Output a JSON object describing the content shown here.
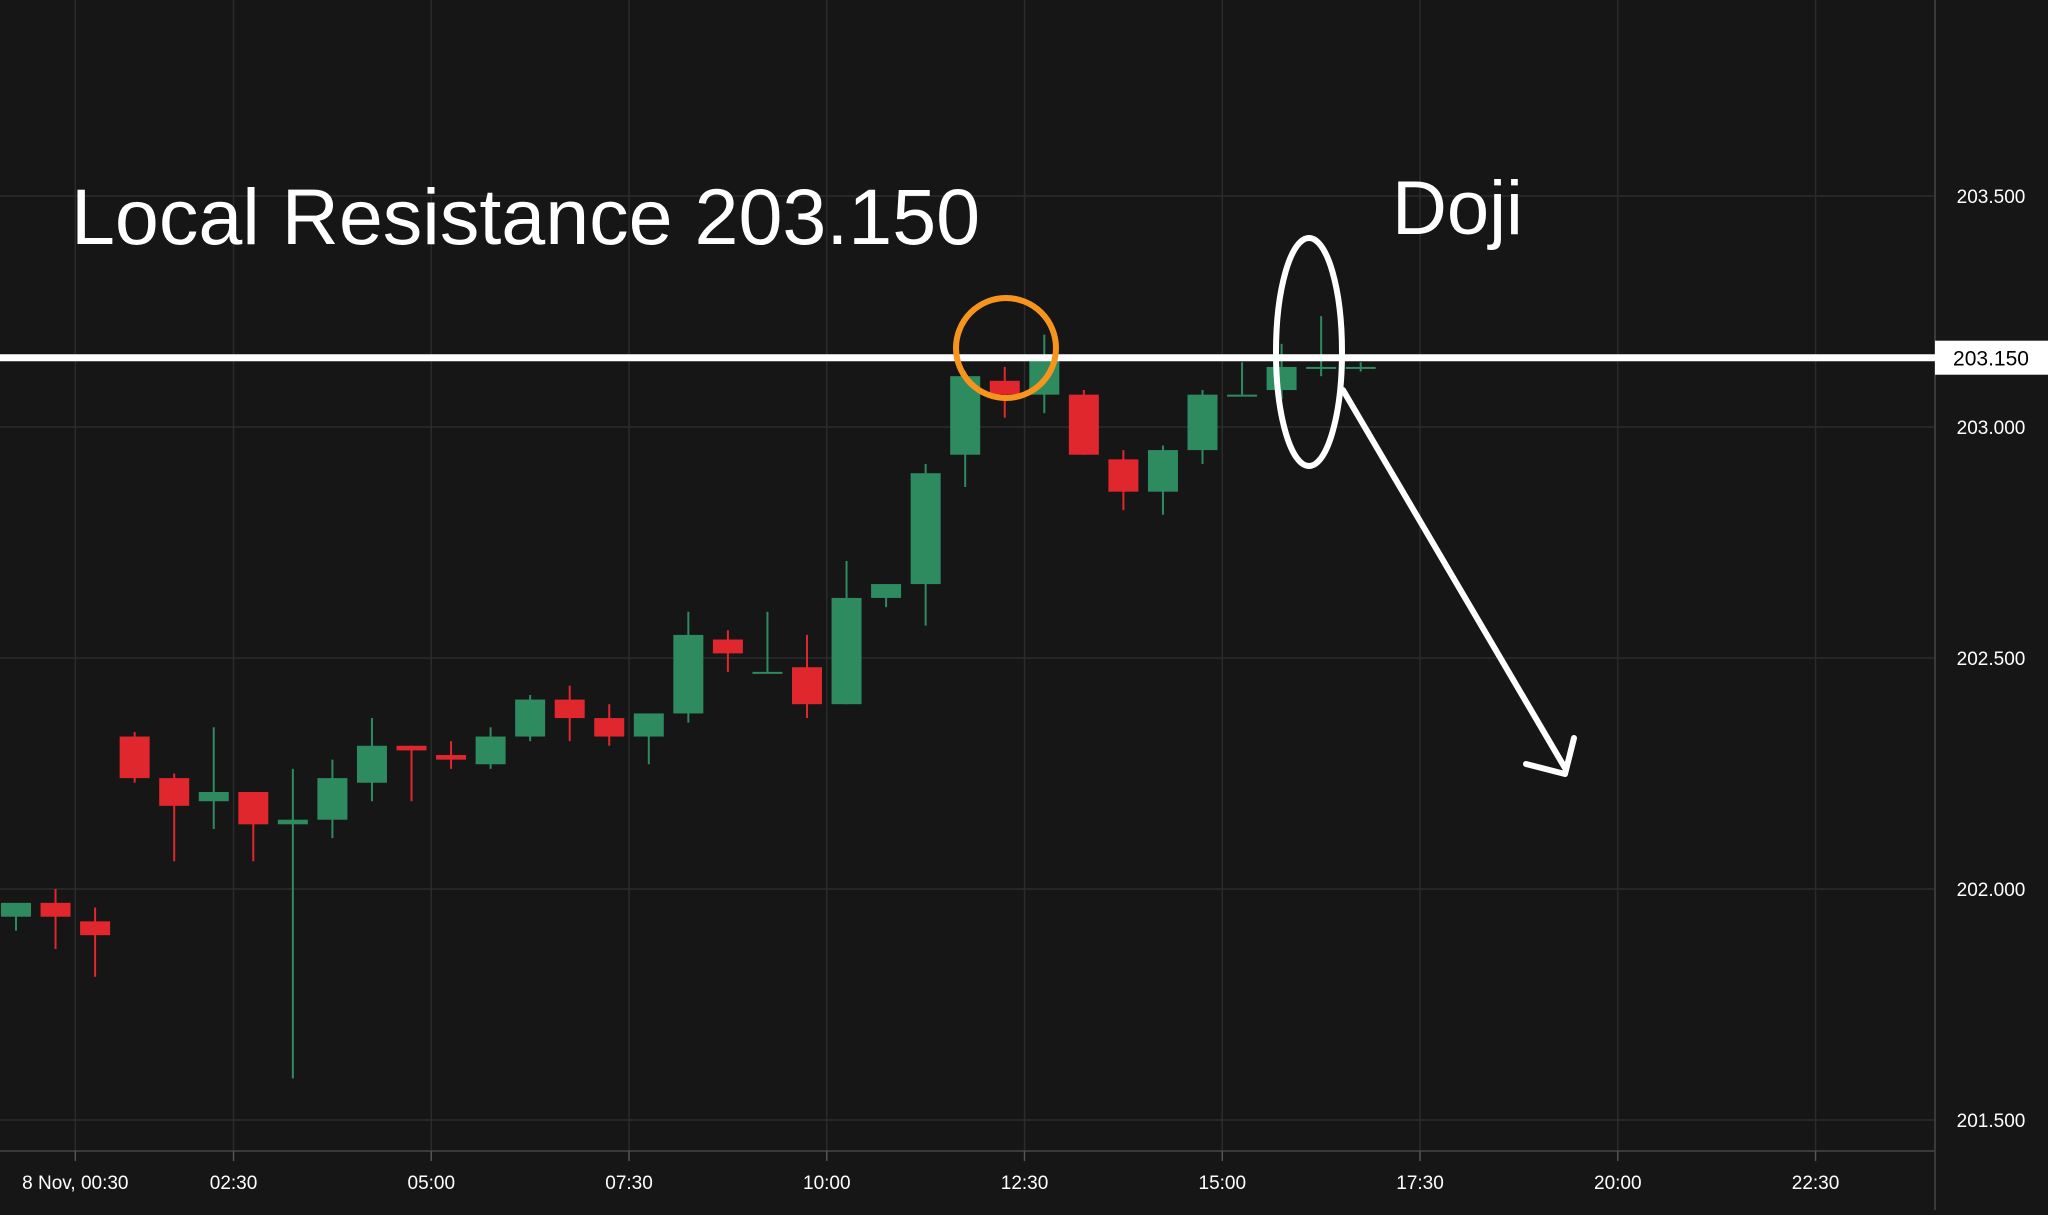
{
  "chart_data": {
    "type": "candlestick",
    "title": "",
    "xlabel": "",
    "ylabel": "",
    "ylim": [
      201.475,
      203.9
    ],
    "grid": true,
    "x_tick_labels": [
      "8 Nov, 00:30",
      "02:30",
      "05:00",
      "07:30",
      "10:00",
      "12:30",
      "15:00",
      "17:30",
      "20:00",
      "22:30"
    ],
    "x_tick_slots": [
      1.5,
      5.5,
      10.5,
      15.5,
      20.5,
      25.5,
      30.5,
      35.5,
      40.5,
      45.5
    ],
    "y_ticks": [
      201.5,
      202.0,
      202.5,
      203.0,
      203.5
    ],
    "y_tick_labels": [
      "201.500",
      "202.000",
      "202.500",
      "203.000",
      "203.500"
    ],
    "candles": [
      {
        "o": 201.94,
        "h": 201.97,
        "l": 201.91,
        "c": 201.97
      },
      {
        "o": 201.97,
        "h": 202.0,
        "l": 201.87,
        "c": 201.94
      },
      {
        "o": 201.93,
        "h": 201.96,
        "l": 201.81,
        "c": 201.9
      },
      {
        "o": 202.33,
        "h": 202.34,
        "l": 202.23,
        "c": 202.24
      },
      {
        "o": 202.24,
        "h": 202.25,
        "l": 202.06,
        "c": 202.18
      },
      {
        "o": 202.19,
        "h": 202.35,
        "l": 202.13,
        "c": 202.21
      },
      {
        "o": 202.21,
        "h": 202.21,
        "l": 202.06,
        "c": 202.14
      },
      {
        "o": 202.14,
        "h": 202.26,
        "l": 201.59,
        "c": 202.15
      },
      {
        "o": 202.15,
        "h": 202.28,
        "l": 202.11,
        "c": 202.24
      },
      {
        "o": 202.23,
        "h": 202.37,
        "l": 202.19,
        "c": 202.31
      },
      {
        "o": 202.31,
        "h": 202.31,
        "l": 202.19,
        "c": 202.3
      },
      {
        "o": 202.29,
        "h": 202.32,
        "l": 202.26,
        "c": 202.28
      },
      {
        "o": 202.27,
        "h": 202.35,
        "l": 202.26,
        "c": 202.33
      },
      {
        "o": 202.33,
        "h": 202.42,
        "l": 202.32,
        "c": 202.41
      },
      {
        "o": 202.41,
        "h": 202.44,
        "l": 202.32,
        "c": 202.37
      },
      {
        "o": 202.37,
        "h": 202.4,
        "l": 202.31,
        "c": 202.33
      },
      {
        "o": 202.33,
        "h": 202.38,
        "l": 202.27,
        "c": 202.38
      },
      {
        "o": 202.38,
        "h": 202.6,
        "l": 202.36,
        "c": 202.55
      },
      {
        "o": 202.54,
        "h": 202.56,
        "l": 202.47,
        "c": 202.51
      },
      {
        "o": 202.47,
        "h": 202.6,
        "l": 202.47,
        "c": 202.47
      },
      {
        "o": 202.48,
        "h": 202.55,
        "l": 202.37,
        "c": 202.4
      },
      {
        "o": 202.4,
        "h": 202.71,
        "l": 202.4,
        "c": 202.63
      },
      {
        "o": 202.63,
        "h": 202.66,
        "l": 202.61,
        "c": 202.66
      },
      {
        "o": 202.66,
        "h": 202.92,
        "l": 202.57,
        "c": 202.9
      },
      {
        "o": 202.94,
        "h": 203.12,
        "l": 202.87,
        "c": 203.11
      },
      {
        "o": 203.1,
        "h": 203.13,
        "l": 203.02,
        "c": 203.07
      },
      {
        "o": 203.07,
        "h": 203.2,
        "l": 203.03,
        "c": 203.15
      },
      {
        "o": 203.07,
        "h": 203.08,
        "l": 202.94,
        "c": 202.94
      },
      {
        "o": 202.93,
        "h": 202.95,
        "l": 202.82,
        "c": 202.86
      },
      {
        "o": 202.86,
        "h": 202.96,
        "l": 202.81,
        "c": 202.95
      },
      {
        "o": 202.95,
        "h": 203.08,
        "l": 202.92,
        "c": 203.07
      },
      {
        "o": 203.07,
        "h": 203.14,
        "l": 203.07,
        "c": 203.07
      },
      {
        "o": 203.08,
        "h": 203.18,
        "l": 203.06,
        "c": 203.13
      },
      {
        "o": 203.13,
        "h": 203.24,
        "l": 203.11,
        "c": 203.13
      },
      {
        "o": 203.13,
        "h": 203.14,
        "l": 203.12,
        "c": 203.13
      }
    ],
    "resistance_line": {
      "value": 203.15,
      "label": "203.150"
    },
    "annotations": {
      "title": "Local Resistance 203.150",
      "doji_label": "Doji"
    },
    "colors": {
      "background": "#161616",
      "grid": "#2b2b2b",
      "up": "#2e8b5f",
      "down": "#e0272e",
      "line": "#ffffff",
      "highlight_circle": "#f7941d",
      "doji_ellipse": "#ffffff"
    }
  }
}
